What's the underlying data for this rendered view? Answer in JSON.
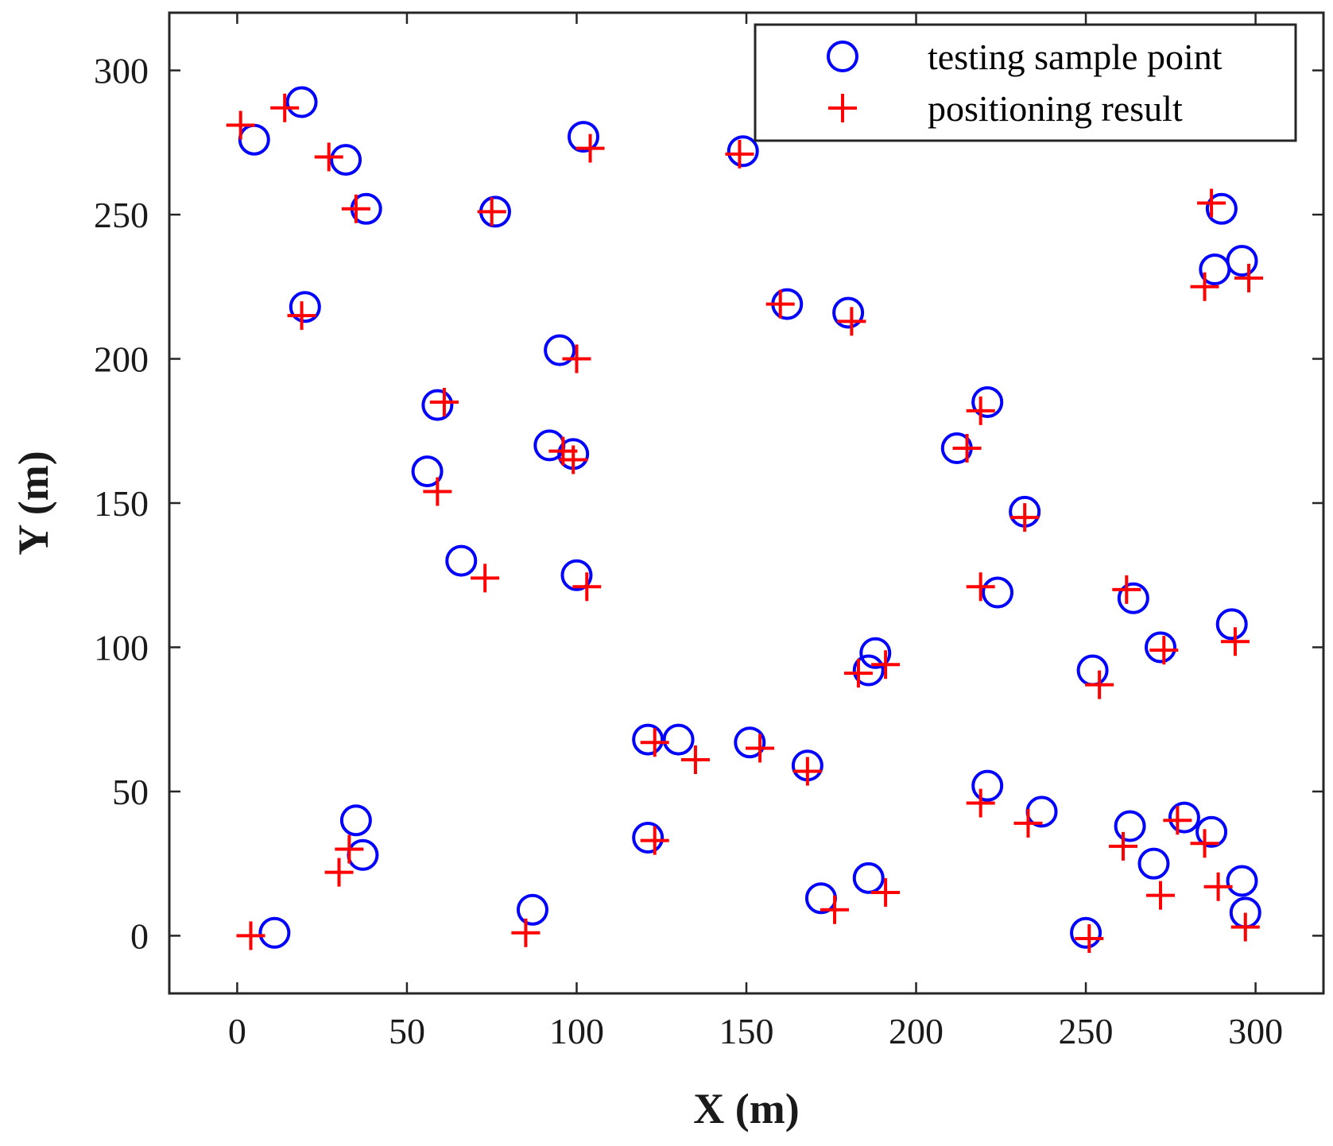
{
  "chart_data": {
    "type": "scatter",
    "xlabel": "X (m)",
    "ylabel": "Y (m)",
    "xlim": [
      -20,
      320
    ],
    "ylim": [
      -20,
      320
    ],
    "xticks": [
      0,
      50,
      100,
      150,
      200,
      250,
      300
    ],
    "yticks": [
      0,
      50,
      100,
      150,
      200,
      250,
      300
    ],
    "grid": false,
    "legend_position": "top-right",
    "series": [
      {
        "name": "testing sample point",
        "marker": "circle",
        "color": "#0000ff",
        "points": [
          [
            5,
            276
          ],
          [
            19,
            289
          ],
          [
            32,
            269
          ],
          [
            38,
            252
          ],
          [
            20,
            218
          ],
          [
            76,
            251
          ],
          [
            102,
            277
          ],
          [
            149,
            272
          ],
          [
            95,
            203
          ],
          [
            59,
            184
          ],
          [
            56,
            161
          ],
          [
            92,
            170
          ],
          [
            99,
            167
          ],
          [
            66,
            130
          ],
          [
            100,
            125
          ],
          [
            162,
            219
          ],
          [
            180,
            216
          ],
          [
            221,
            185
          ],
          [
            212,
            169
          ],
          [
            232,
            147
          ],
          [
            224,
            119
          ],
          [
            290,
            252
          ],
          [
            288,
            231
          ],
          [
            296,
            234
          ],
          [
            264,
            117
          ],
          [
            272,
            100
          ],
          [
            293,
            108
          ],
          [
            252,
            92
          ],
          [
            188,
            98
          ],
          [
            186,
            92
          ],
          [
            121,
            68
          ],
          [
            130,
            68
          ],
          [
            151,
            67
          ],
          [
            168,
            59
          ],
          [
            121,
            34
          ],
          [
            35,
            40
          ],
          [
            37,
            28
          ],
          [
            11,
            1
          ],
          [
            87,
            9
          ],
          [
            172,
            13
          ],
          [
            186,
            20
          ],
          [
            221,
            52
          ],
          [
            237,
            43
          ],
          [
            263,
            38
          ],
          [
            270,
            25
          ],
          [
            279,
            41
          ],
          [
            287,
            36
          ],
          [
            296,
            19
          ],
          [
            297,
            8
          ],
          [
            250,
            1
          ]
        ]
      },
      {
        "name": "positioning result",
        "marker": "plus",
        "color": "#ff0000",
        "points": [
          [
            1,
            281
          ],
          [
            14,
            287
          ],
          [
            27,
            270
          ],
          [
            35,
            252
          ],
          [
            19,
            215
          ],
          [
            75,
            251
          ],
          [
            104,
            273
          ],
          [
            148,
            271
          ],
          [
            100,
            200
          ],
          [
            61,
            185
          ],
          [
            59,
            154
          ],
          [
            96,
            168
          ],
          [
            99,
            165
          ],
          [
            73,
            124
          ],
          [
            103,
            121
          ],
          [
            160,
            219
          ],
          [
            181,
            213
          ],
          [
            219,
            182
          ],
          [
            215,
            169
          ],
          [
            232,
            145
          ],
          [
            219,
            121
          ],
          [
            287,
            254
          ],
          [
            285,
            225
          ],
          [
            298,
            228
          ],
          [
            262,
            120
          ],
          [
            273,
            99
          ],
          [
            294,
            102
          ],
          [
            254,
            87
          ],
          [
            191,
            94
          ],
          [
            183,
            91
          ],
          [
            123,
            67
          ],
          [
            135,
            61
          ],
          [
            154,
            65
          ],
          [
            168,
            57
          ],
          [
            123,
            33
          ],
          [
            33,
            30
          ],
          [
            30,
            22
          ],
          [
            4,
            0
          ],
          [
            85,
            1
          ],
          [
            176,
            9
          ],
          [
            191,
            15
          ],
          [
            219,
            46
          ],
          [
            233,
            39
          ],
          [
            261,
            31
          ],
          [
            272,
            14
          ],
          [
            277,
            40
          ],
          [
            285,
            32
          ],
          [
            289,
            17
          ],
          [
            297,
            3
          ],
          [
            251,
            -1
          ]
        ]
      }
    ]
  }
}
